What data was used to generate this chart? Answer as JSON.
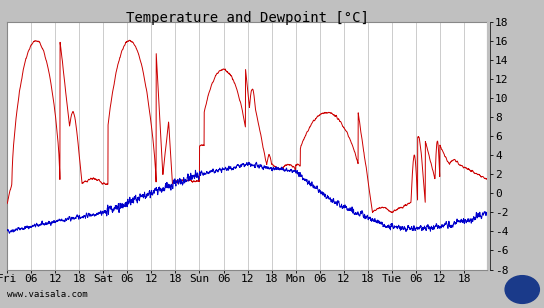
{
  "title": "Temperature and Dewpoint [°C]",
  "ylim": [
    -8,
    18
  ],
  "yticks": [
    -8,
    -6,
    -4,
    -2,
    0,
    2,
    4,
    6,
    8,
    10,
    12,
    14,
    16,
    18
  ],
  "temp_color": "#cc0000",
  "dewp_color": "#0000cc",
  "bg_color": "#ffffff",
  "fig_bg": "#c0c0c0",
  "grid_color": "#cccccc",
  "title_fontsize": 10,
  "tick_fontsize": 8,
  "watermark": "www.vaisala.com",
  "n_points": 2880,
  "days_total": 4.989583
}
